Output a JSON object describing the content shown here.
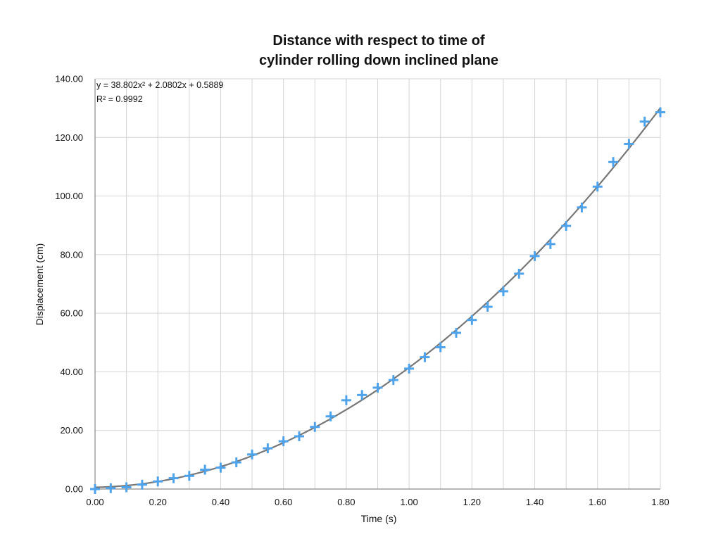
{
  "chart_data": {
    "type": "scatter",
    "title_line1": "Distance with respect to time of",
    "title_line2": "cylinder rolling down inclined plane",
    "xlabel": "Time (s)",
    "ylabel": "Displacement (cm)",
    "xlim": [
      0,
      1.8
    ],
    "ylim": [
      0,
      140
    ],
    "x_ticks": [
      "0.00",
      "0.20",
      "0.40",
      "0.60",
      "0.80",
      "1.00",
      "1.20",
      "1.40",
      "1.60",
      "1.80"
    ],
    "y_ticks": [
      "0.00",
      "20.00",
      "40.00",
      "60.00",
      "80.00",
      "100.00",
      "120.00",
      "140.00"
    ],
    "grid": true,
    "marker": "plus",
    "marker_color": "#4ea3ea",
    "trendline_color": "#777777",
    "trendline": {
      "type": "polynomial",
      "a": 38.802,
      "b": 2.0802,
      "c": 0.5889,
      "equation_label": "y = 38.802x² + 2.0802x + 0.5889",
      "r2_label": "R² = 0.9992"
    },
    "series": [
      {
        "x": [
          0.0,
          0.05,
          0.1,
          0.15,
          0.2,
          0.25,
          0.3,
          0.35,
          0.4,
          0.45,
          0.5,
          0.55,
          0.6,
          0.65,
          0.7,
          0.75,
          0.8,
          0.85,
          0.9,
          0.95,
          1.0,
          1.05,
          1.1,
          1.15,
          1.2,
          1.25,
          1.3,
          1.35,
          1.4,
          1.45,
          1.5,
          1.55,
          1.6,
          1.65,
          1.7,
          1.75,
          1.8
        ],
        "y": [
          0.0,
          0.3,
          0.6,
          1.5,
          2.6,
          3.7,
          4.5,
          6.6,
          7.3,
          9.1,
          11.8,
          13.9,
          16.3,
          18.0,
          21.2,
          24.8,
          30.3,
          32.1,
          34.6,
          37.2,
          41.1,
          45.0,
          48.4,
          53.3,
          57.7,
          62.2,
          67.5,
          73.5,
          79.5,
          83.6,
          89.8,
          96.1,
          103.2,
          111.6,
          117.8,
          125.4,
          128.6
        ]
      }
    ]
  }
}
